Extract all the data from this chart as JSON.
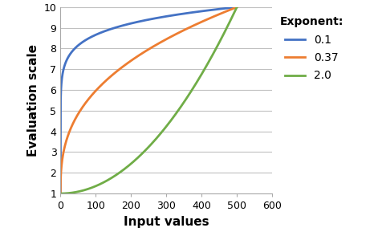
{
  "title": "",
  "xlabel": "Input values",
  "ylabel": "Evaluation scale",
  "xlim": [
    0,
    600
  ],
  "ylim": [
    1,
    10
  ],
  "xticks": [
    0,
    100,
    200,
    300,
    400,
    500,
    600
  ],
  "yticks": [
    1,
    2,
    3,
    4,
    5,
    6,
    7,
    8,
    9,
    10
  ],
  "x_min": 0,
  "x_max": 500,
  "y_min": 1,
  "y_max": 10,
  "exponents": [
    0.1,
    0.37,
    2.0
  ],
  "colors": [
    "#4472C4",
    "#ED7D31",
    "#70AD47"
  ],
  "legend_title": "Exponent:",
  "legend_labels": [
    "0.1",
    "0.37",
    "2.0"
  ],
  "background_color": "#FFFFFF",
  "grid_color": "#C0C0C0",
  "xlabel_fontsize": 11,
  "ylabel_fontsize": 11,
  "tick_fontsize": 9,
  "legend_fontsize": 10,
  "legend_title_fontsize": 10,
  "linewidth": 2.0
}
